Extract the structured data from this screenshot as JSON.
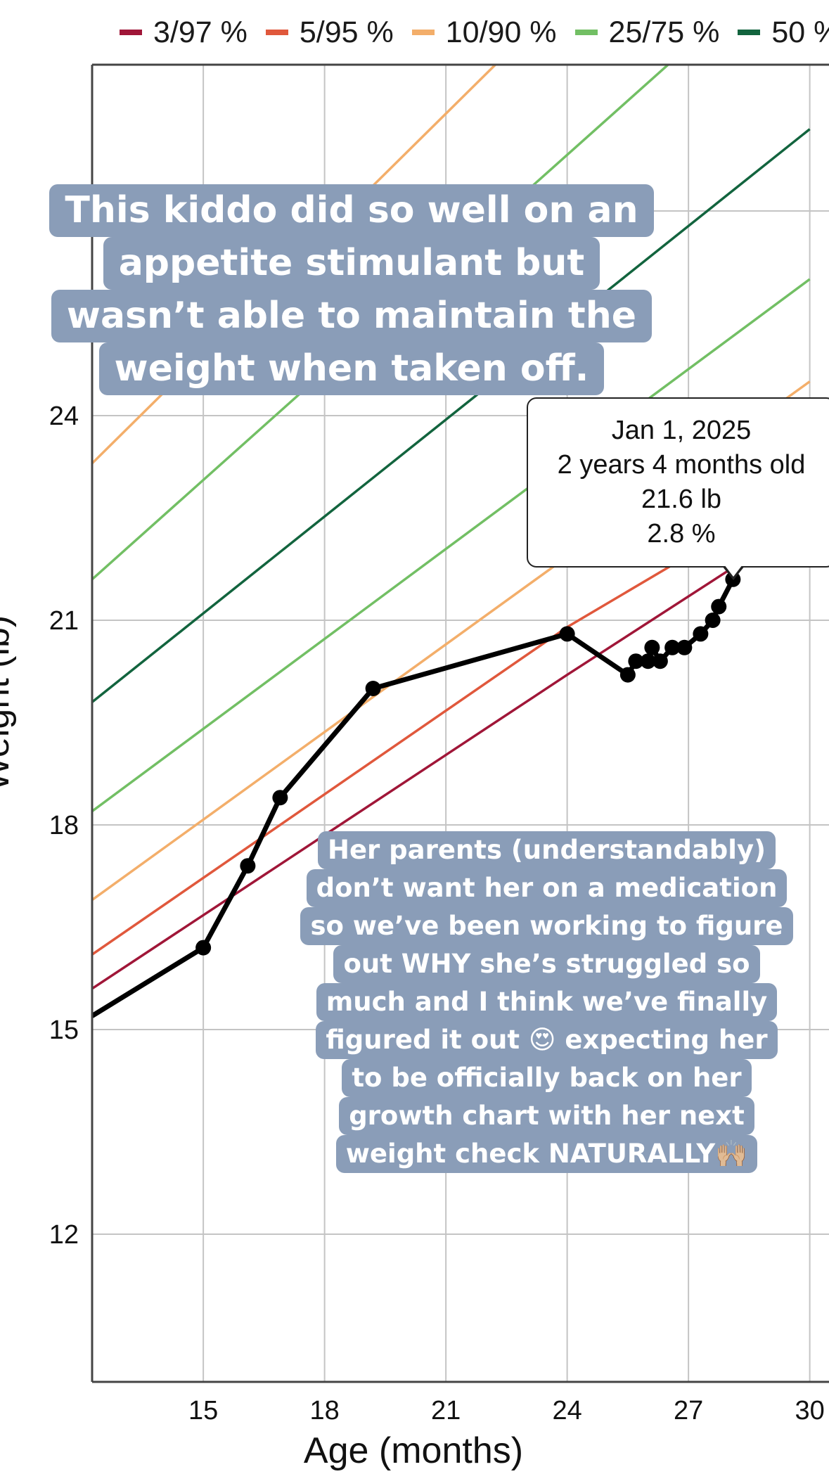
{
  "legend": [
    {
      "label": "3/97 %",
      "color": "#a01638"
    },
    {
      "label": "5/95 %",
      "color": "#e0583c"
    },
    {
      "label": "10/90 %",
      "color": "#f3ae6a"
    },
    {
      "label": "25/75 %",
      "color": "#72bf64"
    },
    {
      "label": "50 %",
      "color": "#12643e"
    }
  ],
  "tooltip": {
    "date": "Jan 1, 2025",
    "age": "2 years 4 months old",
    "weight": "21.6 lb",
    "percentile": "2.8 %"
  },
  "captions": {
    "top": [
      "This kiddo did so well on an",
      "appetite stimulant but",
      "wasn’t able to maintain the",
      "weight when taken off."
    ],
    "bottom": [
      "Her parents (understandably)",
      "don’t want her on a medication",
      "so we’ve been working to figure",
      "out WHY she’s struggled so",
      "much and I think we’ve finally",
      "figured it out 😍 expecting her",
      "to be officially back on her",
      "growth chart with her next",
      "weight check NATURALLY🙌🏼"
    ]
  },
  "chart_data": {
    "type": "line",
    "xlabel": "Age (months)",
    "ylabel": "Weight (lb)",
    "xlim": [
      12.25,
      30
    ],
    "ylim": [
      10,
      29.3
    ],
    "x_ticks": [
      15,
      18,
      21,
      24,
      27,
      30
    ],
    "y_ticks": [
      12,
      15,
      18,
      21,
      24,
      27
    ],
    "grid": true,
    "legend_position": "top",
    "series": [
      {
        "name": "3/97 %",
        "color": "#a01638",
        "points": [
          [
            12.25,
            15.6
          ],
          [
            24,
            20.2
          ],
          [
            30,
            22.5
          ]
        ],
        "upper_points": [
          [
            12.25,
            31.9
          ],
          [
            30,
            40.5
          ]
        ]
      },
      {
        "name": "5/95 %",
        "color": "#e0583c",
        "points": [
          [
            12.25,
            16.1
          ],
          [
            24,
            20.9
          ],
          [
            30,
            23.0
          ]
        ],
        "upper_points": [
          [
            12.25,
            31.0
          ],
          [
            30,
            39.5
          ]
        ]
      },
      {
        "name": "10/90 %",
        "color": "#f3ae6a",
        "points": [
          [
            12.25,
            16.9
          ],
          [
            30,
            24.5
          ]
        ],
        "upper_points": [
          [
            12.25,
            23.3
          ],
          [
            30,
            33.7
          ]
        ]
      },
      {
        "name": "25/75 %",
        "color": "#72bf64",
        "points": [
          [
            12.25,
            18.2
          ],
          [
            30,
            26.0
          ]
        ],
        "upper_points": [
          [
            12.25,
            21.6
          ],
          [
            30,
            31.0
          ]
        ]
      },
      {
        "name": "50 %",
        "color": "#12643e",
        "points": [
          [
            12.25,
            19.8
          ],
          [
            30,
            28.2
          ]
        ]
      }
    ],
    "measurements": {
      "color": "#000000",
      "points": [
        [
          12.25,
          15.2
        ],
        [
          15,
          16.2
        ],
        [
          16.1,
          17.4
        ],
        [
          16.9,
          18.4
        ],
        [
          19.2,
          20.0
        ],
        [
          24,
          20.8
        ],
        [
          25.5,
          20.2
        ],
        [
          25.7,
          20.4
        ],
        [
          26.0,
          20.4
        ],
        [
          26.1,
          20.6
        ],
        [
          26.3,
          20.4
        ],
        [
          26.6,
          20.6
        ],
        [
          26.9,
          20.6
        ],
        [
          27.3,
          20.8
        ],
        [
          27.6,
          21.0
        ],
        [
          27.75,
          21.2
        ],
        [
          28.1,
          21.6
        ]
      ]
    }
  }
}
